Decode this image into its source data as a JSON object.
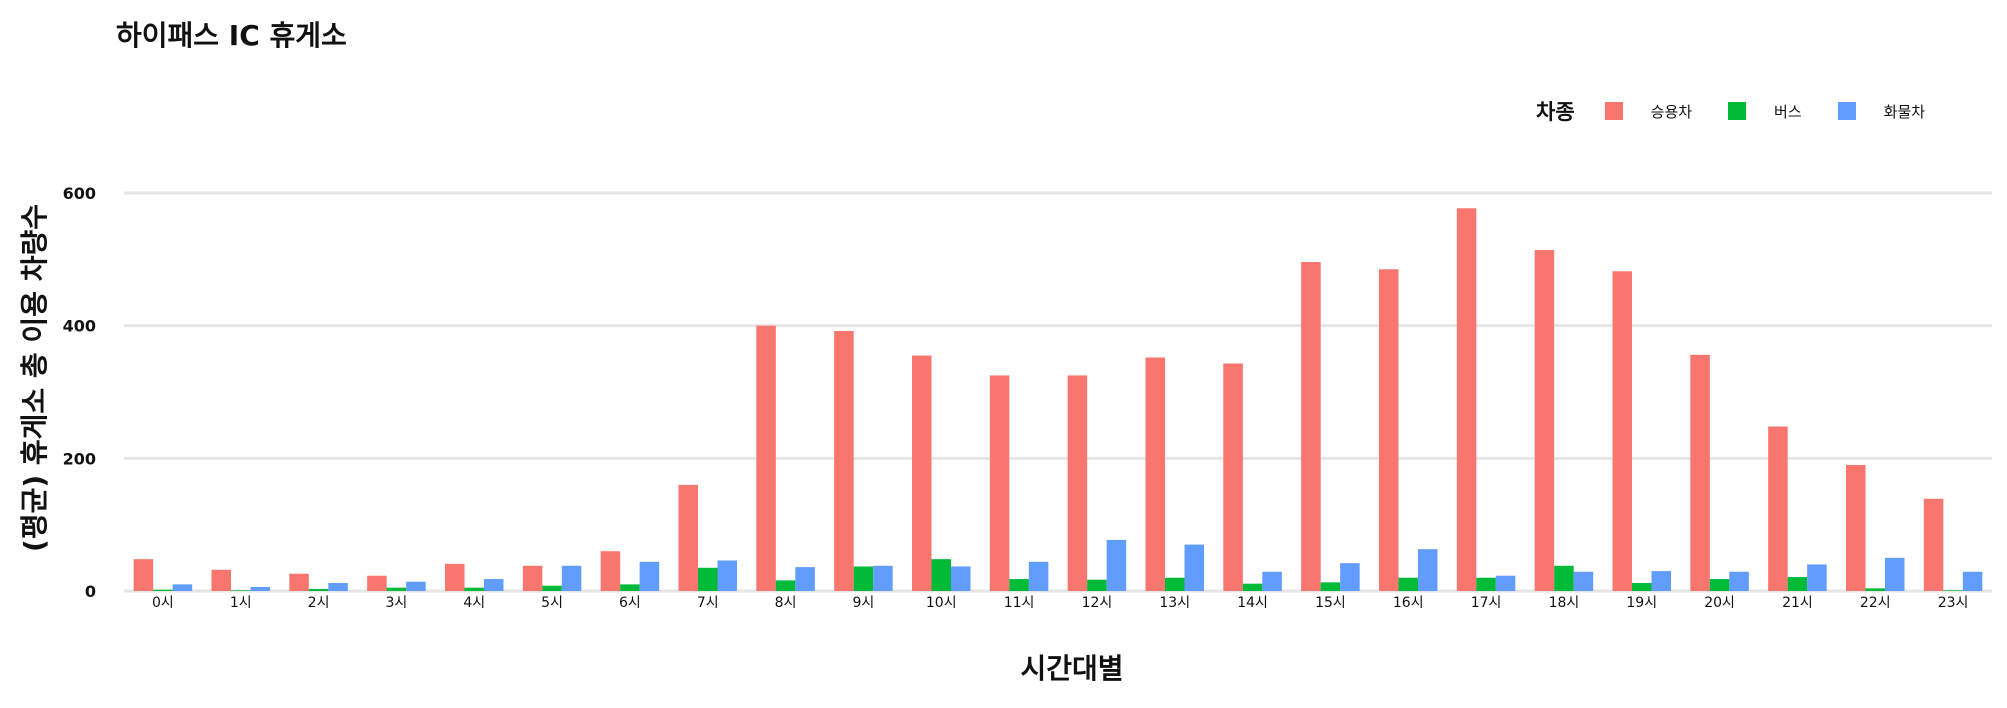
{
  "chart_data": {
    "type": "bar",
    "title": "하이패스 IC 휴게소",
    "xlabel": "시간대별",
    "ylabel": "(평균) 휴게소 총 이용 차량수",
    "ylim": [
      0,
      600
    ],
    "yticks": [
      0,
      200,
      400,
      600
    ],
    "grid": "horizontal",
    "legend_title": "차종",
    "legend_position": "top-right",
    "categories": [
      "0시",
      "1시",
      "2시",
      "3시",
      "4시",
      "5시",
      "6시",
      "7시",
      "8시",
      "9시",
      "10시",
      "11시",
      "12시",
      "13시",
      "14시",
      "15시",
      "16시",
      "17시",
      "18시",
      "19시",
      "20시",
      "21시",
      "22시",
      "23시"
    ],
    "series": [
      {
        "name": "승용차",
        "color": "#F8766D",
        "values": [
          48,
          32,
          26,
          23,
          41,
          38,
          60,
          160,
          400,
          392,
          355,
          325,
          325,
          352,
          343,
          496,
          485,
          577,
          514,
          482,
          356,
          248,
          190,
          139
        ]
      },
      {
        "name": "버스",
        "color": "#00BA38",
        "values": [
          2,
          1,
          3,
          5,
          5,
          8,
          10,
          35,
          16,
          37,
          48,
          18,
          17,
          20,
          11,
          13,
          20,
          20,
          38,
          12,
          18,
          21,
          4,
          1
        ]
      },
      {
        "name": "화물차",
        "color": "#619CFF",
        "values": [
          10,
          6,
          12,
          14,
          18,
          38,
          44,
          46,
          36,
          38,
          37,
          44,
          77,
          70,
          29,
          42,
          63,
          23,
          29,
          30,
          29,
          40,
          50,
          29
        ]
      }
    ]
  }
}
